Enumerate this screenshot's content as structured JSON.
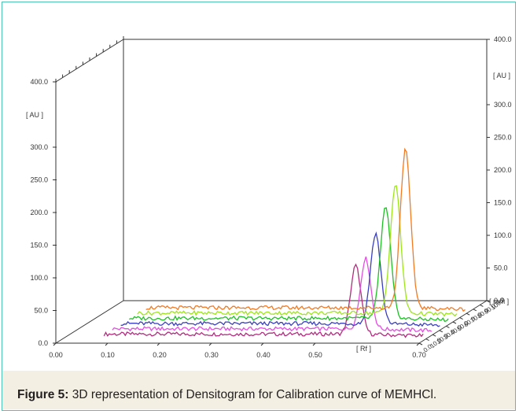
{
  "chart_data": {
    "type": "line",
    "title": "",
    "left_axis": {
      "label": "[ AU ]",
      "ticks": [
        "0.0",
        "50.0",
        "100.0",
        "150.0",
        "200.0",
        "250.0",
        "300.0",
        "400.0"
      ],
      "range": [
        0,
        400
      ]
    },
    "right_axis": {
      "label": "[ AU ]",
      "ticks": [
        "0.0",
        "50.0",
        "100.0",
        "150.0",
        "200.0",
        "250.0",
        "300.0",
        "400.0"
      ],
      "range": [
        0,
        400
      ]
    },
    "x_axis": {
      "label": "[ Rf ]",
      "ticks": [
        "0.00",
        "0.10",
        "0.20",
        "0.30",
        "0.40",
        "0.50",
        "0.70"
      ],
      "range": [
        0.0,
        0.7
      ]
    },
    "depth_axis": {
      "label": "[ mm ]",
      "ticks": [
        "0.0",
        "10.0",
        "20.0",
        "30.0",
        "40.0",
        "50.0",
        "60.0",
        "70.0",
        "80.0",
        "90.0",
        "100.0"
      ],
      "range": [
        0,
        100
      ]
    },
    "peak_rf": 0.57,
    "series": [
      {
        "color": "#b02d7e",
        "peak": 105
      },
      {
        "color": "#e24fe0",
        "peak": 108
      },
      {
        "color": "#3a3fc0",
        "peak": 138
      },
      {
        "color": "#1fbf26",
        "peak": 170
      },
      {
        "color": "#9ee61a",
        "peak": 196
      },
      {
        "color": "#f27a22",
        "peak": 242
      }
    ]
  },
  "caption": {
    "label": "Figure 5:",
    "text": " 3D representation of Densitogram for Calibration curve of MEMHCl."
  }
}
